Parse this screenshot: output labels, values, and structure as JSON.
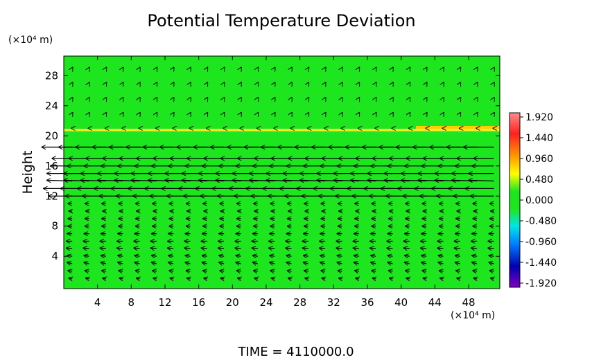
{
  "chart_data": {
    "type": "vector",
    "title": "Potential Temperature Deviation",
    "y_unit": "(×10⁴ m)",
    "x_unit": "(×10⁴ m)",
    "y_label": "Height",
    "footer": "TIME = 4110000.0",
    "background_color": "#1ee61e",
    "xlim": [
      0,
      51.7
    ],
    "ylim": [
      -0.3,
      30.6
    ],
    "xticks": [
      4,
      8,
      12,
      16,
      20,
      24,
      28,
      32,
      36,
      40,
      44,
      48
    ],
    "yticks": [
      4,
      8,
      12,
      16,
      20,
      24,
      28
    ],
    "colorbar": {
      "clim": [
        -2.016,
        2.016
      ],
      "ticks": [
        {
          "value": 1.92,
          "label": "1.920"
        },
        {
          "value": 1.44,
          "label": "1.440"
        },
        {
          "value": 0.96,
          "label": "0.960"
        },
        {
          "value": 0.48,
          "label": "0.480"
        },
        {
          "value": 0,
          "label": "0.000"
        },
        {
          "value": -0.48,
          "label": "-0.480"
        },
        {
          "value": -0.96,
          "label": "-0.960"
        },
        {
          "value": -1.44,
          "label": "-1.440"
        },
        {
          "value": -1.92,
          "label": "-1.920"
        }
      ]
    },
    "vectors": {
      "x": [
        1,
        3,
        5,
        7,
        9,
        11,
        13,
        15,
        17,
        19,
        21,
        23,
        25,
        27,
        29,
        31,
        33,
        35,
        37,
        39,
        41,
        43,
        45,
        47,
        49,
        51
      ],
      "rows": [
        {
          "y": 1,
          "u": -0.4,
          "v": 0.1
        },
        {
          "y": 2,
          "u": -0.5,
          "v": 0.1
        },
        {
          "y": 3,
          "u": -0.6,
          "v": 0.2
        },
        {
          "y": 4,
          "u": -0.6,
          "v": 0.1
        },
        {
          "y": 5,
          "u": -0.7,
          "v": 0.1
        },
        {
          "y": 6,
          "u": -0.7,
          "v": 0
        },
        {
          "y": 7,
          "u": -0.6,
          "v": 0
        },
        {
          "y": 8,
          "u": -0.5,
          "v": 0
        },
        {
          "y": 9,
          "u": -0.5,
          "v": 0
        },
        {
          "y": 10,
          "u": -0.4,
          "v": 0
        },
        {
          "y": 11,
          "u": -0.5,
          "v": 0
        },
        {
          "y": 12,
          "u": -2.8,
          "v": 0
        },
        {
          "y": 13,
          "u": -3.4,
          "v": 0
        },
        {
          "y": 14,
          "u": -3,
          "v": 0.1
        },
        {
          "y": 15,
          "u": -3,
          "v": 0
        },
        {
          "y": 16,
          "u": -2.6,
          "v": 0
        },
        {
          "y": 17,
          "u": -2.4,
          "v": 0
        },
        {
          "y": 18.5,
          "u": -3.6,
          "v": 0
        },
        {
          "y": 21,
          "u": -0.1,
          "v": 0
        },
        {
          "y": 23,
          "u": 0.05,
          "v": 0.1
        },
        {
          "y": 25,
          "u": 0.05,
          "v": 0.1
        },
        {
          "y": 27,
          "u": 0.05,
          "v": 0.1
        },
        {
          "y": 29,
          "u": 0.05,
          "v": 0.1
        }
      ]
    }
  }
}
